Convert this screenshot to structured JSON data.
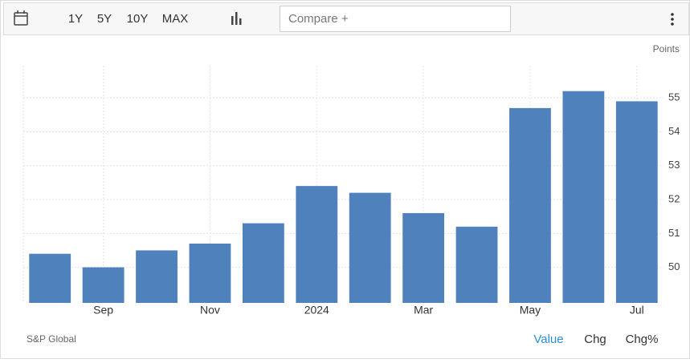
{
  "ui": {
    "ranges": [
      "1Y",
      "5Y",
      "10Y",
      "MAX"
    ],
    "compare": "Compare +",
    "tabs": [
      "Value",
      "Chg",
      "Chg%"
    ]
  },
  "chart_data": {
    "type": "bar",
    "y_label": "Points",
    "source": "S&P Global",
    "categories": [
      null,
      "Sep",
      null,
      "Nov",
      null,
      "2024",
      null,
      "Mar",
      null,
      "May",
      null,
      "Jul"
    ],
    "values": [
      50.4,
      50.0,
      50.5,
      50.7,
      51.3,
      52.4,
      52.2,
      51.6,
      51.2,
      54.7,
      55.2,
      54.9
    ],
    "color": "#4f81bd",
    "ylim": [
      48.95,
      55.95
    ],
    "yticks": [
      50,
      51,
      52,
      53,
      54,
      55
    ],
    "grid": true
  }
}
